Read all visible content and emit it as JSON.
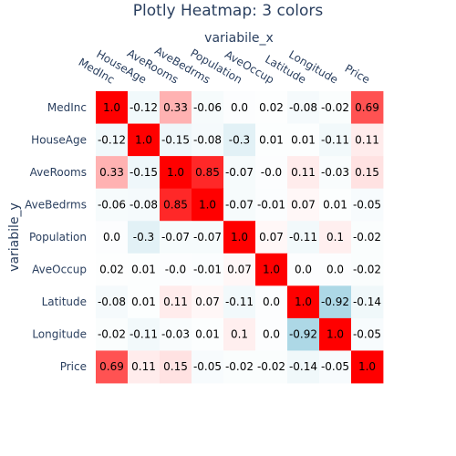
{
  "chart_data": {
    "type": "heatmap",
    "title": "Plotly Heatmap: 3 colors",
    "xlabel": "variabile_x",
    "ylabel": "variabile_y",
    "x": [
      "MedInc",
      "HouseAge",
      "AveRooms",
      "AveBedrms",
      "Population",
      "AveOccup",
      "Latitude",
      "Longitude",
      "Price"
    ],
    "y": [
      "MedInc",
      "HouseAge",
      "AveRooms",
      "AveBedrms",
      "Population",
      "AveOccup",
      "Latitude",
      "Longitude",
      "Price"
    ],
    "z": [
      [
        1.0,
        -0.12,
        0.33,
        -0.06,
        0.0,
        0.02,
        -0.08,
        -0.02,
        0.69
      ],
      [
        -0.12,
        1.0,
        -0.15,
        -0.08,
        -0.3,
        0.01,
        0.01,
        -0.11,
        0.11
      ],
      [
        0.33,
        -0.15,
        1.0,
        0.85,
        -0.07,
        -0.0,
        0.11,
        -0.03,
        0.15
      ],
      [
        -0.06,
        -0.08,
        0.85,
        1.0,
        -0.07,
        -0.01,
        0.07,
        0.01,
        -0.05
      ],
      [
        0.0,
        -0.3,
        -0.07,
        -0.07,
        1.0,
        0.07,
        -0.11,
        0.1,
        -0.02
      ],
      [
        0.02,
        0.01,
        -0.0,
        -0.01,
        0.07,
        1.0,
        0.0,
        0.0,
        -0.02
      ],
      [
        -0.08,
        0.01,
        0.11,
        0.07,
        -0.11,
        0.0,
        1.0,
        -0.92,
        -0.14
      ],
      [
        -0.02,
        -0.11,
        -0.03,
        0.01,
        0.1,
        0.0,
        -0.92,
        1.0,
        -0.05
      ],
      [
        0.69,
        0.11,
        0.15,
        -0.05,
        -0.02,
        -0.02,
        -0.14,
        -0.05,
        1.0
      ]
    ],
    "zlim": [
      -0.92,
      1.0
    ],
    "colorscale": [
      "#add8e6",
      "#ffffff",
      "#ff0000"
    ],
    "colorbar": false
  }
}
